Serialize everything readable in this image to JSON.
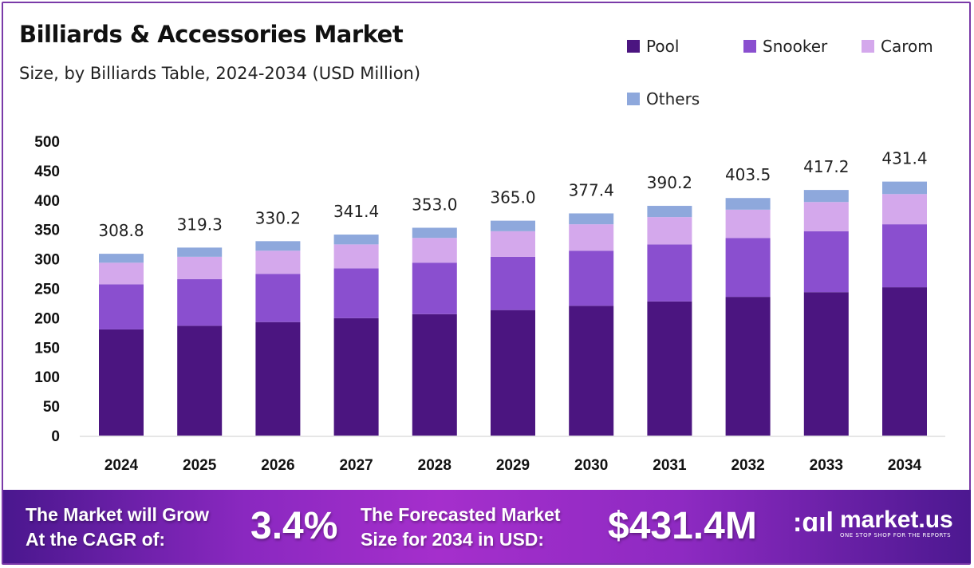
{
  "chart_data": {
    "type": "bar",
    "stacked": true,
    "title": "Billiards & Accessories Market",
    "subtitle": "Size, by Billiards Table, 2024-2034 (USD Million)",
    "categories": [
      "2024",
      "2025",
      "2026",
      "2027",
      "2028",
      "2029",
      "2030",
      "2031",
      "2032",
      "2033",
      "2034"
    ],
    "series": [
      {
        "name": "Pool",
        "color": "#4b1580",
        "values": [
          180.3,
          186.5,
          192.8,
          199.4,
          206.2,
          213.2,
          220.4,
          227.9,
          235.6,
          243.6,
          251.9
        ]
      },
      {
        "name": "Snooker",
        "color": "#8a4fcf",
        "values": [
          76.6,
          79.2,
          81.9,
          84.7,
          87.5,
          90.5,
          93.6,
          96.8,
          100.1,
          103.5,
          107.0
        ]
      },
      {
        "name": "Carom",
        "color": "#d4a8ec",
        "values": [
          36.7,
          38.0,
          39.3,
          40.6,
          42.0,
          43.4,
          44.9,
          46.4,
          48.0,
          49.6,
          51.3
        ]
      },
      {
        "name": "Others",
        "color": "#8ea8dc",
        "values": [
          15.2,
          15.6,
          16.2,
          16.7,
          17.3,
          17.9,
          18.5,
          19.1,
          19.8,
          20.5,
          21.2
        ]
      }
    ],
    "totals": [
      "308.8",
      "319.3",
      "330.2",
      "341.4",
      "353.0",
      "365.0",
      "377.4",
      "390.2",
      "403.5",
      "417.2",
      "431.4"
    ],
    "yticks": [
      "0",
      "50",
      "100",
      "150",
      "200",
      "250",
      "300",
      "350",
      "400",
      "450",
      "500"
    ],
    "ylim": [
      0,
      500
    ],
    "grid": false,
    "legend_position": "top-right"
  },
  "footer": {
    "cagr_label_line1": "The Market will Grow",
    "cagr_label_line2": "At the CAGR of:",
    "cagr_value": "3.4%",
    "forecast_label_line1": "The Forecasted Market",
    "forecast_label_line2": "Size for 2034 in USD:",
    "forecast_value": "$431.4M",
    "brand_name": "market.us",
    "brand_tagline": "ONE STOP SHOP FOR THE REPORTS"
  }
}
